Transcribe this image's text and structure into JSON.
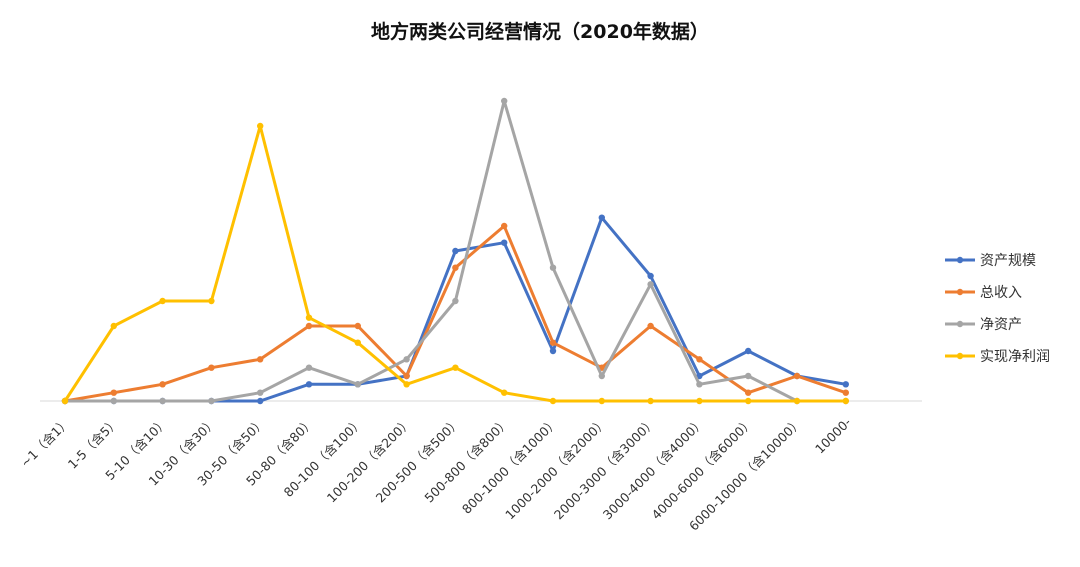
{
  "chart_data": {
    "type": "line",
    "title": "地方两类公司经营情况（2020年数据）",
    "xlabel": "",
    "ylabel": "",
    "categories": [
      "~1（含1）",
      "1-5（含5）",
      "5-10（含10）",
      "10-30（含30）",
      "30-50（含50）",
      "50-80（含80）",
      "80-100（含100）",
      "100-200（含200）",
      "200-500（含500）",
      "500-800（含800）",
      "800-1000（含1000）",
      "1000-2000（含2000）",
      "2000-3000（含3000）",
      "3000-4000（含4000）",
      "4000-6000（含6000）",
      "6000-10000（含10000）",
      "10000-"
    ],
    "ylim": [
      0,
      36
    ],
    "grid": false,
    "legend_position": "right",
    "series": [
      {
        "name": "资产规模",
        "color": "#4472C4",
        "values": [
          0,
          0,
          0,
          0,
          0,
          2,
          2,
          3,
          18,
          19,
          6,
          22,
          15,
          3,
          6,
          3,
          2
        ]
      },
      {
        "name": "总收入",
        "color": "#ED7D31",
        "values": [
          0,
          1,
          2,
          4,
          5,
          9,
          9,
          3,
          16,
          21,
          7,
          4,
          9,
          5,
          1,
          3,
          1
        ]
      },
      {
        "name": "净资产",
        "color": "#A5A5A5",
        "values": [
          0,
          0,
          0,
          0,
          1,
          4,
          2,
          5,
          12,
          36,
          16,
          3,
          14,
          2,
          3,
          0,
          0
        ]
      },
      {
        "name": "实现净利润",
        "color": "#FFC000",
        "values": [
          0,
          9,
          12,
          12,
          33,
          10,
          7,
          2,
          4,
          1,
          0,
          0,
          0,
          0,
          0,
          0,
          0
        ]
      }
    ]
  }
}
